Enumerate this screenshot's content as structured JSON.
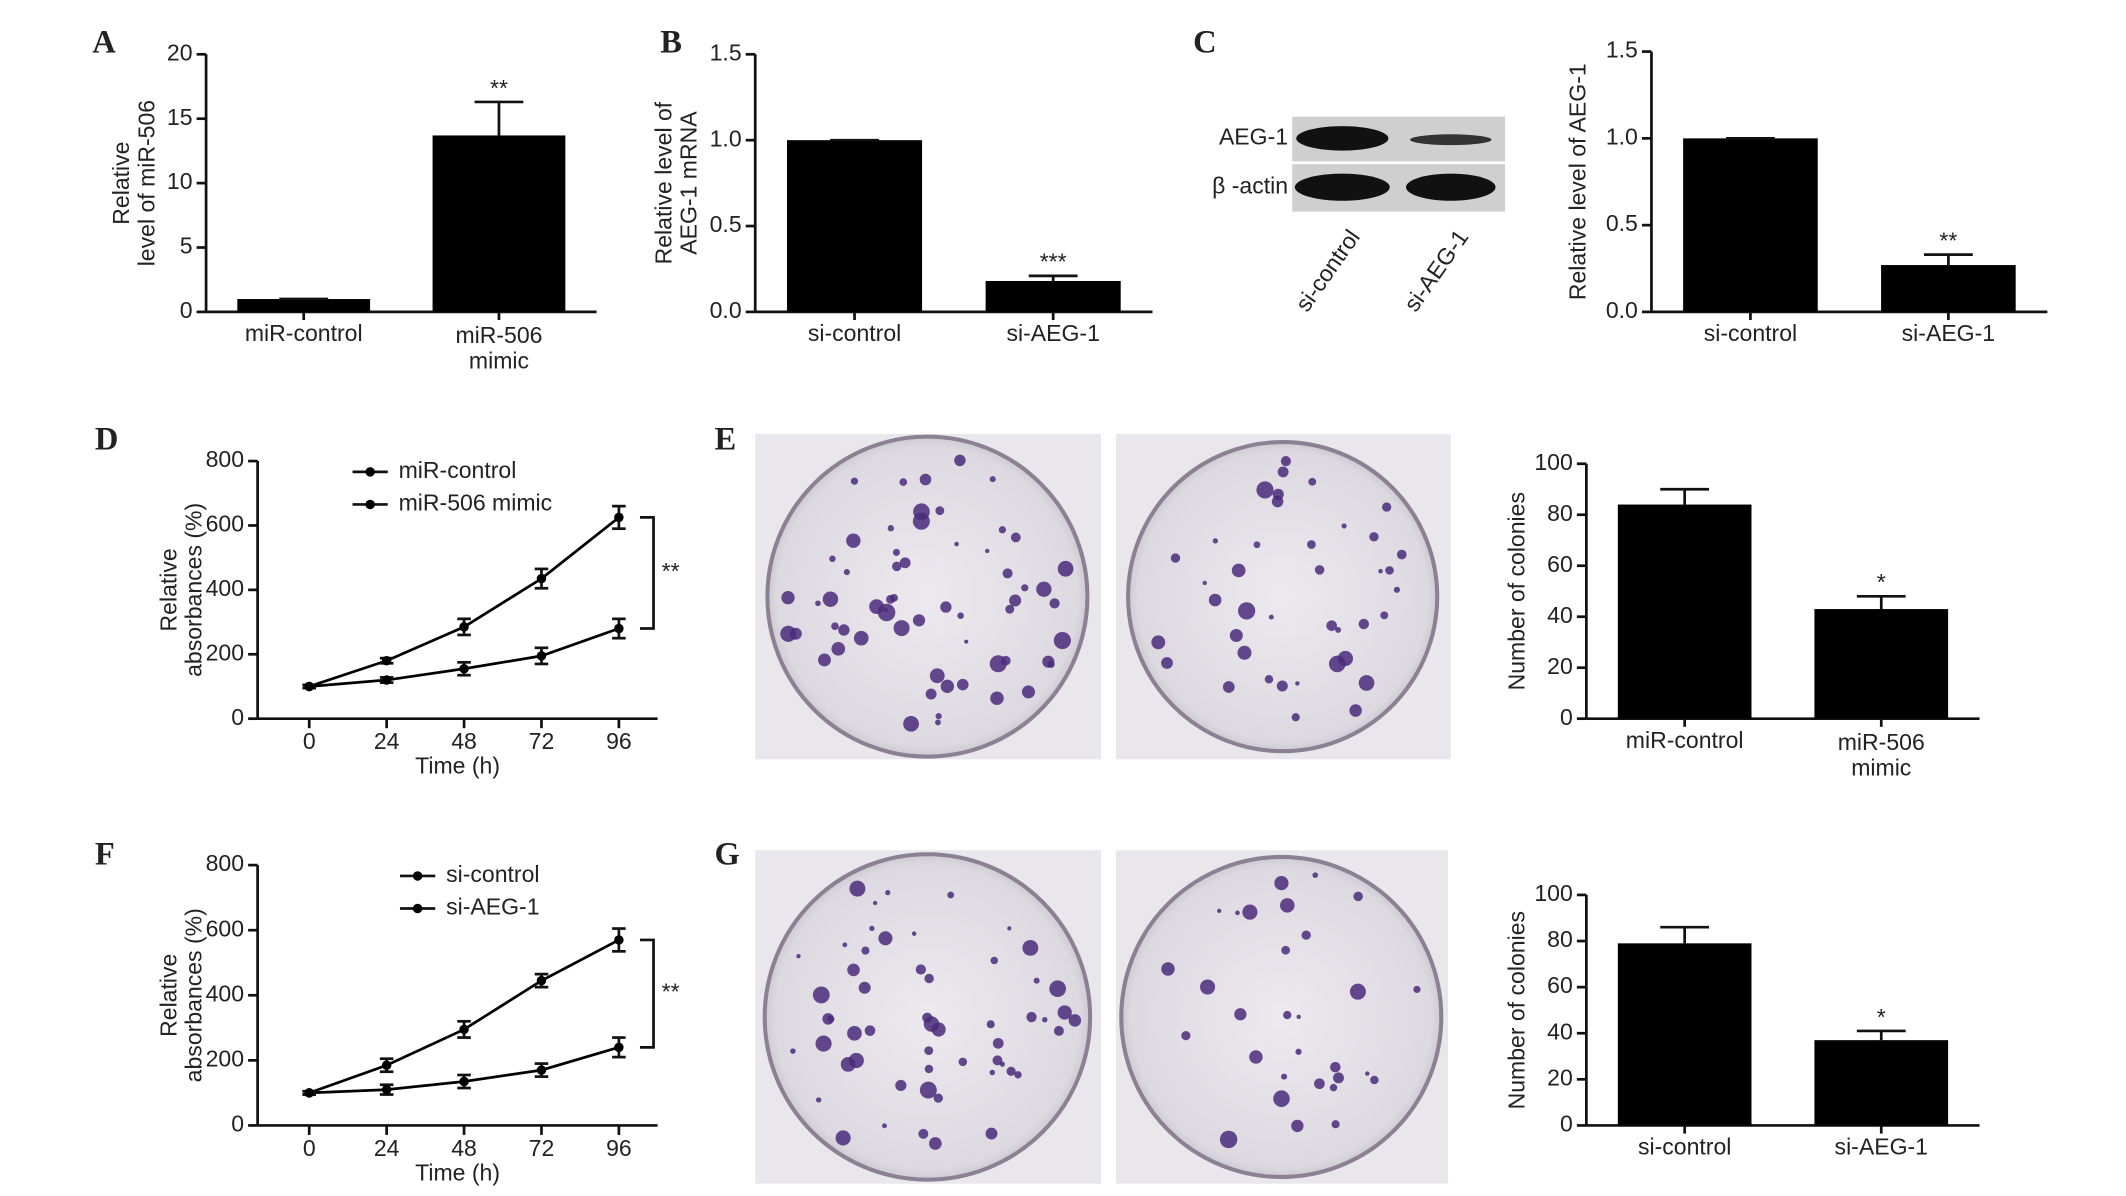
{
  "chart_data": [
    {
      "type": "bar",
      "panel": "A",
      "ylabel": "Relative\nlevel of miR-506",
      "categories": [
        "miR-control",
        "miR-506\nmimic"
      ],
      "values": [
        1,
        13.7
      ],
      "errors": [
        0,
        2.6
      ],
      "significance": [
        null,
        "**"
      ],
      "color": "#000000",
      "ylim": [
        0,
        20
      ],
      "yticks": [
        0,
        5,
        10,
        15,
        20
      ]
    },
    {
      "type": "bar",
      "panel": "B",
      "ylabel": "Relative level of\nAEG-1 mRNA",
      "categories": [
        "si-control",
        "si-AEG-1"
      ],
      "values": [
        1.0,
        0.18
      ],
      "errors": [
        0,
        0.03
      ],
      "significance": [
        null,
        "***"
      ],
      "color": "#000000",
      "ylim": [
        0,
        1.5
      ],
      "yticks": [
        {
          "value": 0,
          "label": "0.0"
        },
        {
          "value": 0.5,
          "label": "0.5"
        },
        {
          "value": 1,
          "label": "1.0"
        },
        {
          "value": 1.5,
          "label": "1.5"
        }
      ]
    },
    {
      "type": "bar",
      "panel": "C",
      "blot": {
        "rows": [
          "AEG-1",
          "β -actin"
        ],
        "lanes": [
          "si-control",
          "si-AEG-1"
        ]
      },
      "ylabel": "Relative level of AEG-1",
      "categories": [
        "si-control",
        "si-AEG-1"
      ],
      "values": [
        1.0,
        0.27
      ],
      "errors": [
        0,
        0.06
      ],
      "significance": [
        null,
        "**"
      ],
      "color": "#000000",
      "ylim": [
        0,
        1.5
      ],
      "yticks": [
        {
          "value": 0,
          "label": "0.0"
        },
        {
          "value": 0.5,
          "label": "0.5"
        },
        {
          "value": 1,
          "label": "1.0"
        },
        {
          "value": 1.5,
          "label": "1.5"
        }
      ]
    },
    {
      "type": "line",
      "panel": "D",
      "ylabel": "Relative\nabsorbances (%)",
      "xlabel": "Time (h)",
      "x": [
        0,
        24,
        48,
        72,
        96
      ],
      "xlim": [
        -16,
        108
      ],
      "xticks": [
        0,
        24,
        48,
        72,
        96
      ],
      "ylim": [
        0,
        800
      ],
      "yticks": [
        0,
        200,
        400,
        600,
        800
      ],
      "significance": "**",
      "series": [
        {
          "name": "miR-control",
          "color": "#000000",
          "values": [
            100,
            180,
            285,
            435,
            625
          ],
          "errors": [
            5,
            8,
            25,
            30,
            35
          ]
        },
        {
          "name": "miR-506 mimic",
          "color": "#000000",
          "values": [
            100,
            120,
            155,
            195,
            280
          ],
          "errors": [
            5,
            8,
            20,
            25,
            30
          ]
        }
      ]
    },
    {
      "type": "bar",
      "panel": "E",
      "ylabel": "Number of colonies",
      "categories": [
        "miR-control",
        "miR-506\nmimic"
      ],
      "values": [
        84,
        43
      ],
      "errors": [
        6,
        5
      ],
      "significance": [
        null,
        "*"
      ],
      "color": "#000000",
      "ylim": [
        0,
        100
      ],
      "yticks": [
        0,
        20,
        40,
        60,
        80,
        100
      ]
    },
    {
      "type": "line",
      "panel": "F",
      "ylabel": "Relative\nabsorbances (%)",
      "xlabel": "Time (h)",
      "x": [
        0,
        24,
        48,
        72,
        96
      ],
      "xlim": [
        -16,
        108
      ],
      "xticks": [
        0,
        24,
        48,
        72,
        96
      ],
      "ylim": [
        0,
        800
      ],
      "yticks": [
        0,
        200,
        400,
        600,
        800
      ],
      "significance": "**",
      "series": [
        {
          "name": "si-control",
          "color": "#000000",
          "values": [
            100,
            185,
            295,
            445,
            570
          ],
          "errors": [
            5,
            20,
            25,
            20,
            35
          ]
        },
        {
          "name": "si-AEG-1",
          "color": "#000000",
          "values": [
            100,
            110,
            135,
            170,
            240
          ],
          "errors": [
            5,
            15,
            20,
            20,
            30
          ]
        }
      ]
    },
    {
      "type": "bar",
      "panel": "G",
      "ylabel": "Number of colonies",
      "categories": [
        "si-control",
        "si-AEG-1"
      ],
      "values": [
        79,
        37
      ],
      "errors": [
        7,
        4
      ],
      "significance": [
        null,
        "*"
      ],
      "color": "#000000",
      "ylim": [
        0,
        100
      ],
      "yticks": [
        0,
        20,
        40,
        60,
        80,
        100
      ]
    }
  ]
}
